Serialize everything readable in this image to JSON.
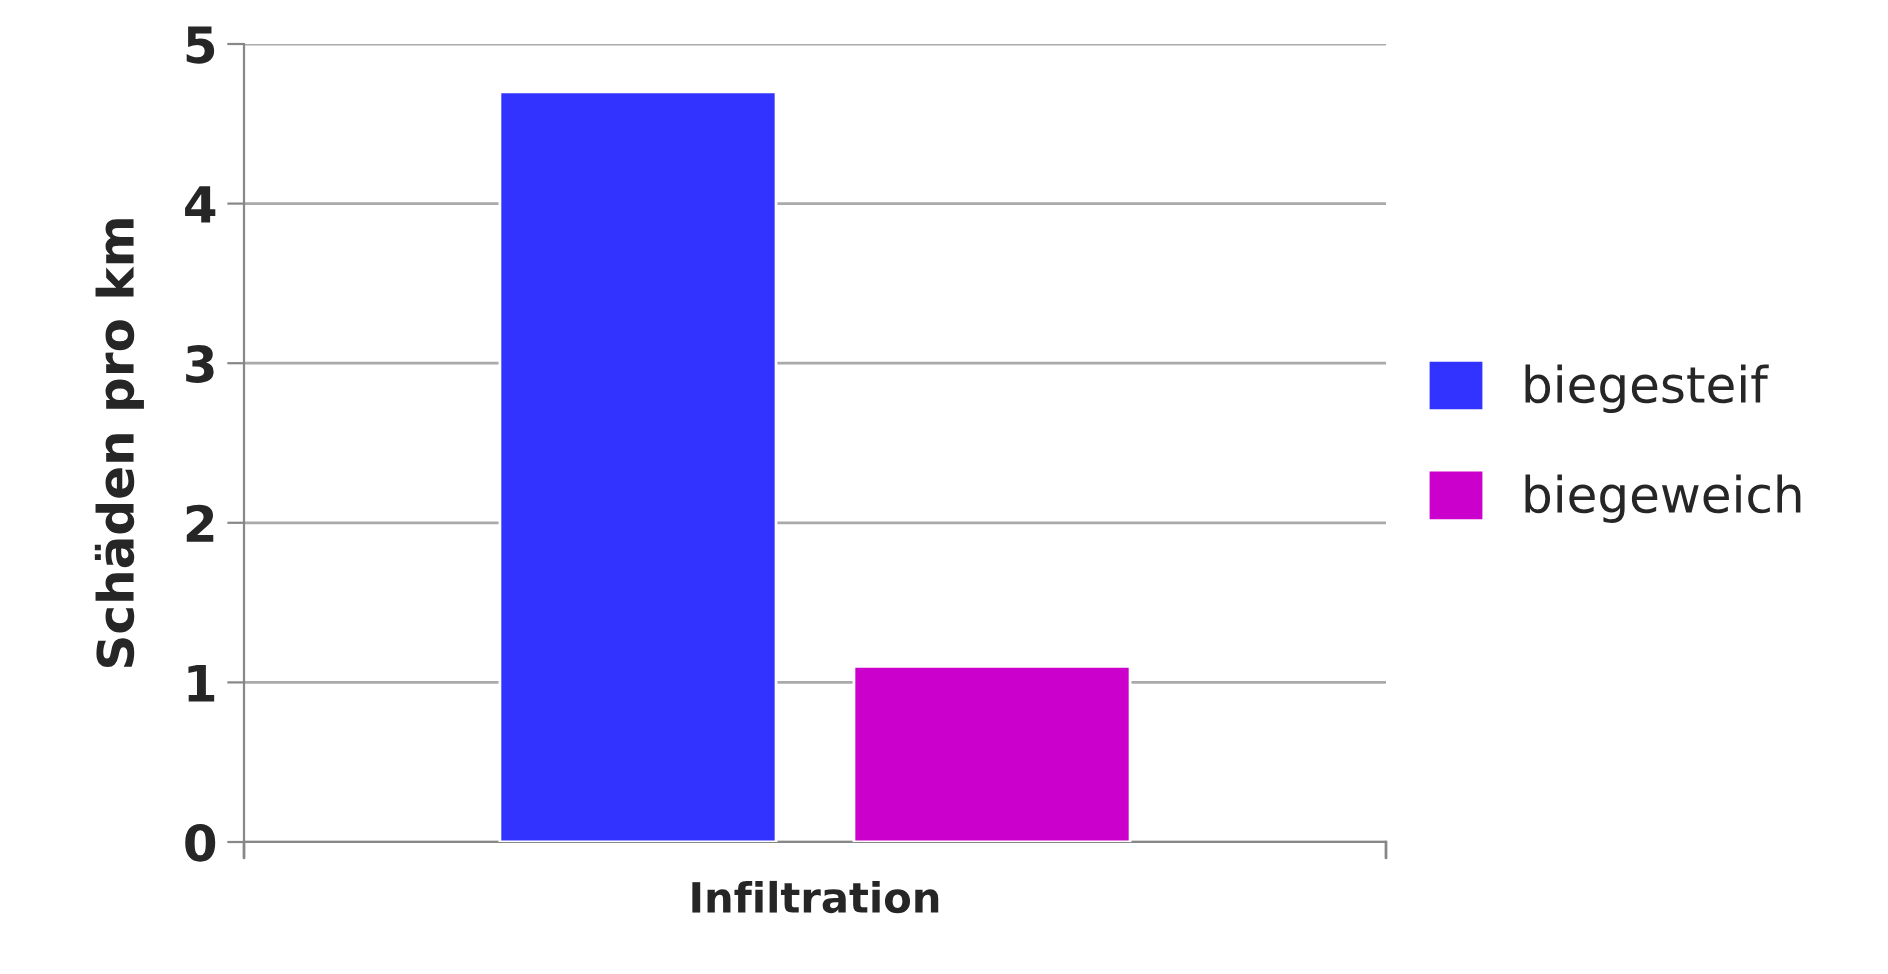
{
  "chart_data": {
    "type": "bar",
    "ylabel": "Schäden pro km",
    "categories": [
      "Infiltration"
    ],
    "series": [
      {
        "name": "biegesteif",
        "color": "#3333ff",
        "values": [
          4.7
        ]
      },
      {
        "name": "biegeweich",
        "color": "#cc00cc",
        "values": [
          1.1
        ]
      }
    ],
    "ylim": [
      0,
      5
    ],
    "yticks": [
      0,
      1,
      2,
      3,
      4,
      5
    ],
    "grid": "y",
    "legend": "right"
  }
}
